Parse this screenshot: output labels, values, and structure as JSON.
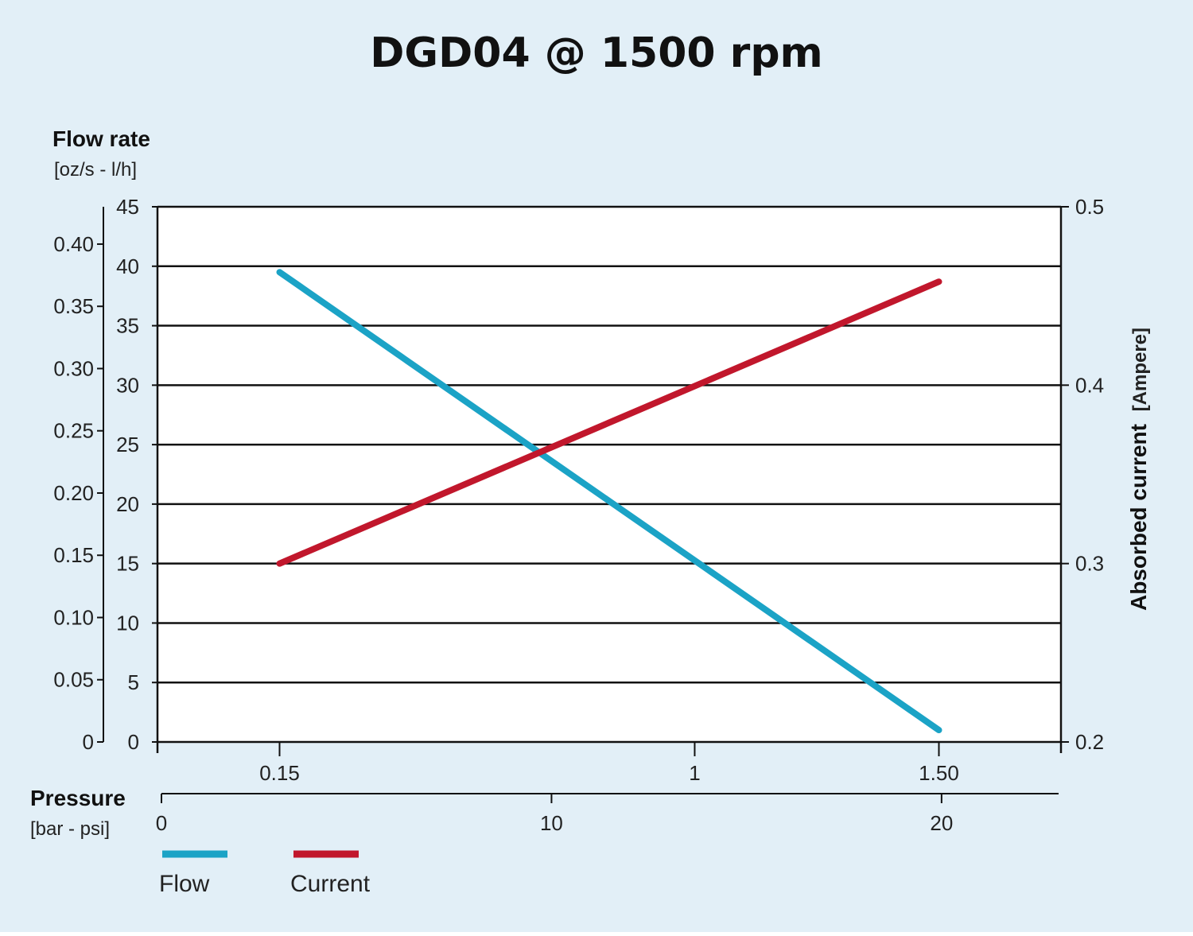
{
  "chart_data": {
    "type": "line",
    "title": "DGD04 @ 1500 rpm",
    "ylabel": "Flow rate",
    "ylabel_units": "[oz/s - l/h]",
    "y2label": "Absorbed current",
    "y2label_units": "[Ampere]",
    "xlabel": "Pressure",
    "xlabel_units": "[bar - psi]",
    "x_bar_ticks": [
      "0.15",
      "1",
      "1.50"
    ],
    "x_bar_tick_values": [
      0.15,
      1,
      1.5
    ],
    "x_psi_ticks": [
      "0",
      "10",
      "20"
    ],
    "x_psi_tick_values": [
      0,
      10,
      20
    ],
    "x_range_bar": [
      -0.1,
      1.75
    ],
    "x_range_psi": [
      0,
      23
    ],
    "ylim_lh": [
      0,
      45
    ],
    "lh_ticks": [
      "0",
      "5",
      "10",
      "15",
      "20",
      "25",
      "30",
      "35",
      "40",
      "45"
    ],
    "lh_tick_values": [
      0,
      5,
      10,
      15,
      20,
      25,
      30,
      35,
      40,
      45
    ],
    "ylim_ozs": [
      0,
      0.43
    ],
    "ozs_ticks": [
      "0",
      "0.05",
      "0.10",
      "0.15",
      "0.20",
      "0.25",
      "0.30",
      "0.35",
      "0.40"
    ],
    "ozs_tick_values": [
      0,
      0.05,
      0.1,
      0.15,
      0.2,
      0.25,
      0.3,
      0.35,
      0.4
    ],
    "ylim_amp": [
      0.2,
      0.5
    ],
    "amp_ticks": [
      "0.2",
      "0.3",
      "0.4",
      "0.5"
    ],
    "amp_tick_values": [
      0.2,
      0.3,
      0.4,
      0.5
    ],
    "grid": true,
    "series": [
      {
        "name": "Flow",
        "axis": "left",
        "color": "#1ba3c6",
        "x": [
          0.15,
          1.5
        ],
        "y": [
          39.5,
          1.0
        ]
      },
      {
        "name": "Current",
        "axis": "right",
        "color": "#c1172c",
        "x": [
          0.15,
          1.5
        ],
        "y": [
          0.3,
          0.458
        ]
      }
    ],
    "legend": "bottom-left"
  }
}
